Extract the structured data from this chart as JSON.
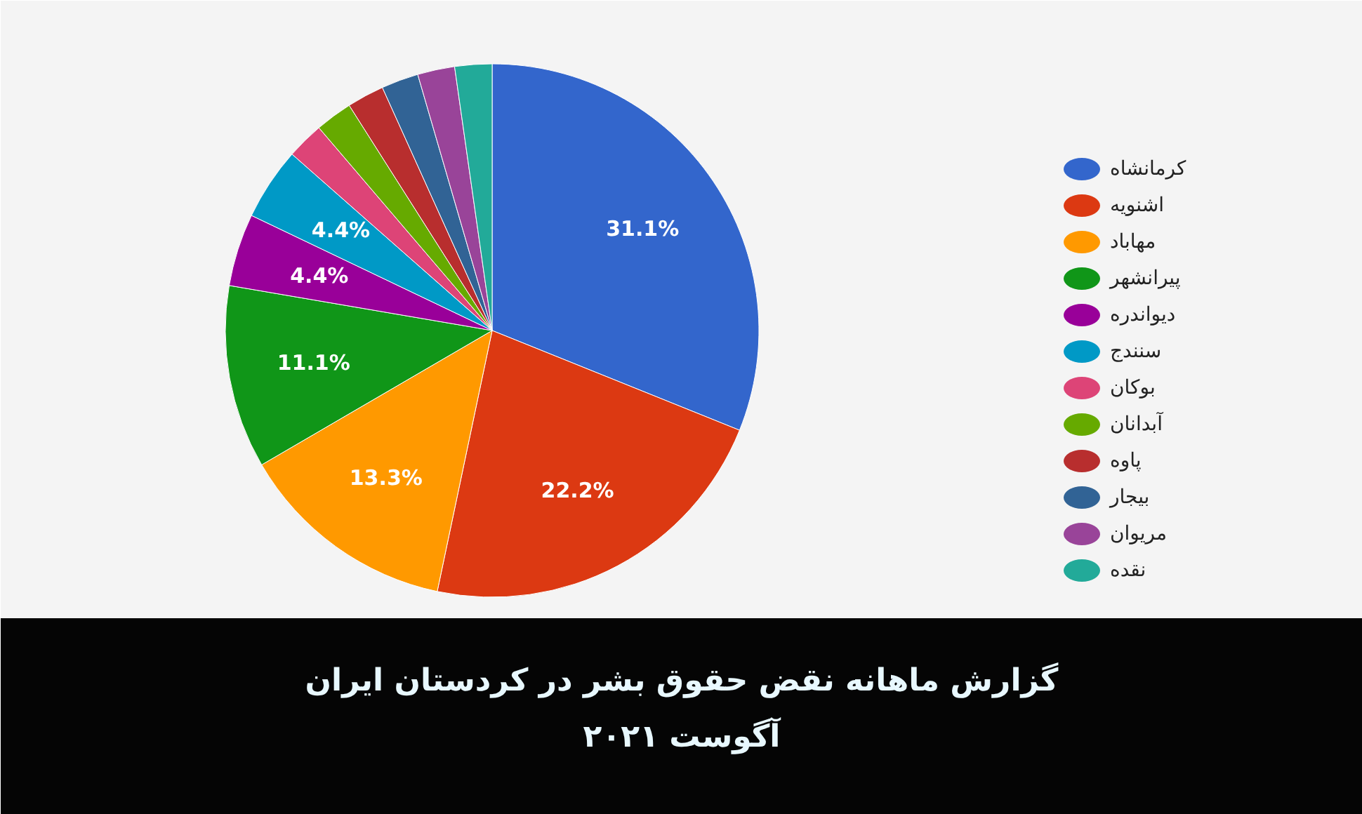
{
  "chart_data": {
    "type": "pie",
    "title": "گزارش ماهانه نقض حقوق بشر در کردستان ایران",
    "subtitle": "آگوست ۲۰۲۱",
    "categories": [
      "کرمانشاه",
      "اشنویه",
      "مهاباد",
      "پیرانشهر",
      "دیواندره",
      "سنندج",
      "بوکان",
      "آبدانان",
      "پاوه",
      "بیجار",
      "مریوان",
      "نقده"
    ],
    "values": [
      31.1,
      22.2,
      13.3,
      11.1,
      4.4,
      4.4,
      2.25,
      2.25,
      2.25,
      2.25,
      2.25,
      2.25
    ],
    "value_labels": [
      "31.1%",
      "22.2%",
      "13.3%",
      "11.1%",
      "4.4%",
      "4.4%",
      null,
      null,
      null,
      null,
      null,
      null
    ],
    "colors": [
      "#3366cc",
      "#dc3912",
      "#ff9900",
      "#109618",
      "#990099",
      "#0099c6",
      "#dd4477",
      "#66aa00",
      "#b82e2e",
      "#316395",
      "#994499",
      "#22aa99"
    ],
    "legend": "right"
  }
}
